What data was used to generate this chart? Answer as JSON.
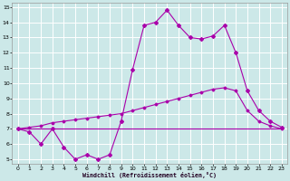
{
  "xlabel": "Windchill (Refroidissement éolien,°C)",
  "bg_color": "#cce8e8",
  "line_color": "#aa00aa",
  "grid_color": "#ffffff",
  "xlim": [
    -0.5,
    23.5
  ],
  "ylim": [
    4.7,
    15.3
  ],
  "yticks": [
    5,
    6,
    7,
    8,
    9,
    10,
    11,
    12,
    13,
    14,
    15
  ],
  "xticks": [
    0,
    1,
    2,
    3,
    4,
    5,
    6,
    7,
    8,
    9,
    10,
    11,
    12,
    13,
    14,
    15,
    16,
    17,
    18,
    19,
    20,
    21,
    22,
    23
  ],
  "line1_x": [
    0,
    1,
    2,
    3,
    4,
    5,
    6,
    7,
    8,
    9,
    10,
    11,
    12,
    13,
    14,
    15,
    16,
    17,
    18,
    19,
    20,
    21,
    22,
    23
  ],
  "line1_y": [
    7.0,
    6.8,
    6.0,
    7.0,
    5.8,
    5.0,
    5.3,
    5.0,
    5.3,
    7.5,
    10.9,
    13.8,
    14.0,
    14.8,
    13.8,
    13.0,
    12.9,
    13.1,
    13.8,
    12.0,
    9.5,
    8.2,
    7.5,
    7.1
  ],
  "line2_x": [
    0,
    1,
    2,
    3,
    4,
    5,
    6,
    7,
    8,
    9,
    10,
    11,
    12,
    13,
    14,
    15,
    16,
    17,
    18,
    19,
    20,
    21,
    22,
    23
  ],
  "line2_y": [
    7.0,
    7.1,
    7.2,
    7.4,
    7.5,
    7.6,
    7.7,
    7.8,
    7.9,
    8.0,
    8.2,
    8.4,
    8.6,
    8.8,
    9.0,
    9.2,
    9.4,
    9.6,
    9.7,
    9.5,
    8.2,
    7.5,
    7.2,
    7.0
  ],
  "line3_x": [
    0,
    23
  ],
  "line3_y": [
    7.0,
    7.0
  ]
}
